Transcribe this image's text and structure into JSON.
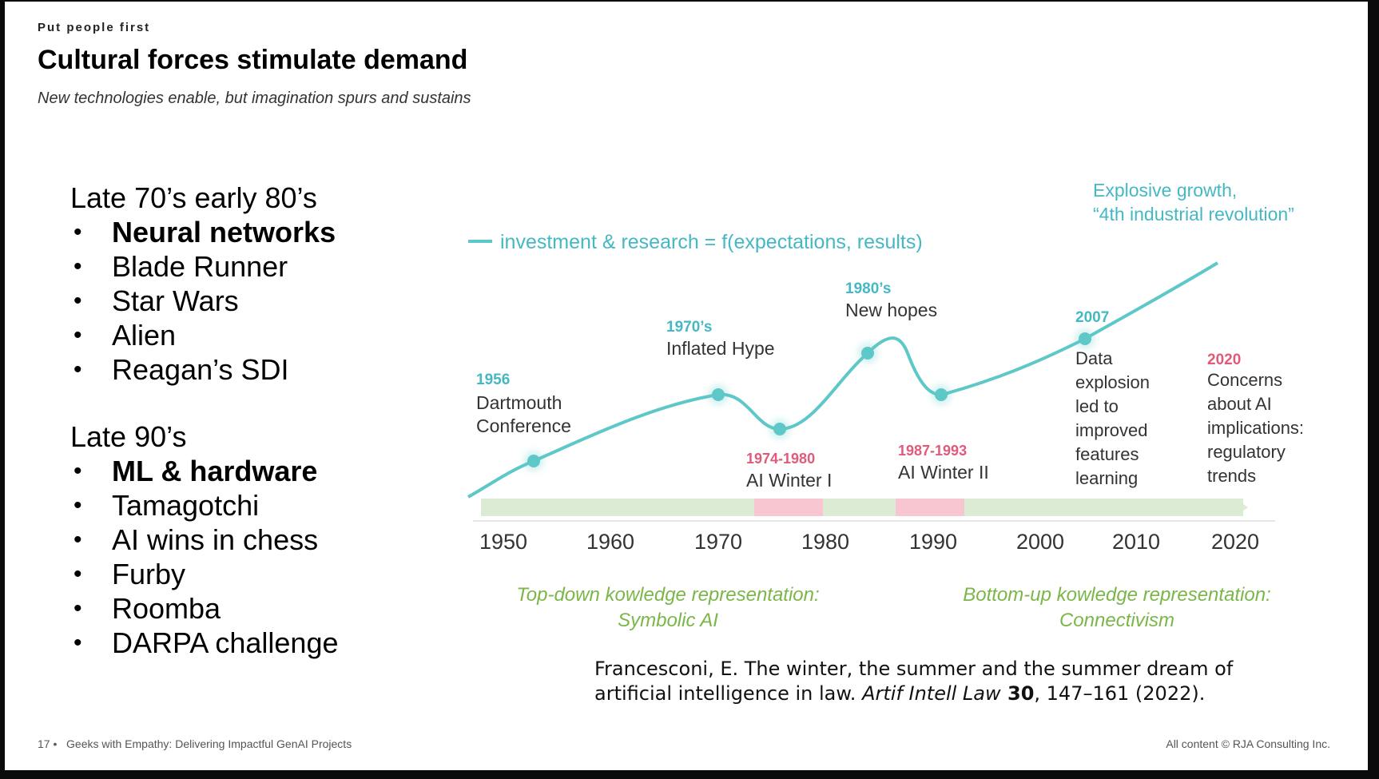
{
  "slide": {
    "kicker": "Put people first",
    "title": "Cultural forces stimulate demand",
    "subtitle": "New technologies enable, but imagination spurs and sustains"
  },
  "left_groups": [
    {
      "heading": "Late 70’s early 80’s",
      "items": [
        {
          "text": "Neural networks",
          "bold": true
        },
        {
          "text": "Blade Runner",
          "bold": false
        },
        {
          "text": "Star Wars",
          "bold": false
        },
        {
          "text": "Alien",
          "bold": false
        },
        {
          "text": "Reagan’s SDI",
          "bold": false
        }
      ]
    },
    {
      "heading": "Late 90’s",
      "items": [
        {
          "text": "ML & hardware",
          "bold": true
        },
        {
          "text": "Tamagotchi",
          "bold": false
        },
        {
          "text": "AI wins in chess",
          "bold": false
        },
        {
          "text": "Furby",
          "bold": false
        },
        {
          "text": "Roomba",
          "bold": false
        },
        {
          "text": "DARPA challenge",
          "bold": false
        }
      ]
    }
  ],
  "chart_data": {
    "type": "line",
    "legend": "investment & research = f(expectations, results)",
    "x_ticks": [
      "1950",
      "1960",
      "1970",
      "1980",
      "1990",
      "2000",
      "2010",
      "2020"
    ],
    "series_color": "#5ec8c8",
    "winter_color": "#e05a7a",
    "milestone_color": "#45b8c4",
    "annotations": [
      {
        "year": "1956",
        "label": [
          "Dartmouth",
          "Conference"
        ],
        "kind": "milestone"
      },
      {
        "year": "1970’s",
        "label": [
          "Inflated Hype"
        ],
        "kind": "milestone"
      },
      {
        "year": "1974-1980",
        "label": [
          "AI Winter I"
        ],
        "kind": "winter"
      },
      {
        "year": "1980’s",
        "label": [
          "New hopes"
        ],
        "kind": "milestone"
      },
      {
        "year": "1987-1993",
        "label": [
          "AI Winter II"
        ],
        "kind": "winter"
      },
      {
        "year": "2007",
        "label": [
          "Data",
          "explosion",
          "led to",
          "improved",
          "features",
          "learning"
        ],
        "kind": "milestone"
      },
      {
        "year": "2020",
        "label": [
          "Concerns",
          "about AI",
          "implications:",
          "regulatory",
          "trends"
        ],
        "kind": "winter"
      }
    ],
    "top_note": [
      "Explosive growth,",
      "“4th industrial revolution”"
    ],
    "eras": [
      {
        "label": [
          "Top-down kowledge representation:",
          "Symbolic AI"
        ]
      },
      {
        "label": [
          "Bottom-up kowledge representation:",
          "Connectivism"
        ]
      }
    ]
  },
  "citation": {
    "line1": "Francesconi, E. The winter, the summer and the summer dream of",
    "line2_pre": "artificial intelligence in law. ",
    "journal": "Artif Intell Law",
    "volume": " 30",
    "rest": ", 147–161 (2022)."
  },
  "footer": {
    "page": "17",
    "presentation": "Geeks with Empathy: Delivering Impactful GenAI Projects",
    "copyright": "All content © RJA Consulting Inc."
  }
}
